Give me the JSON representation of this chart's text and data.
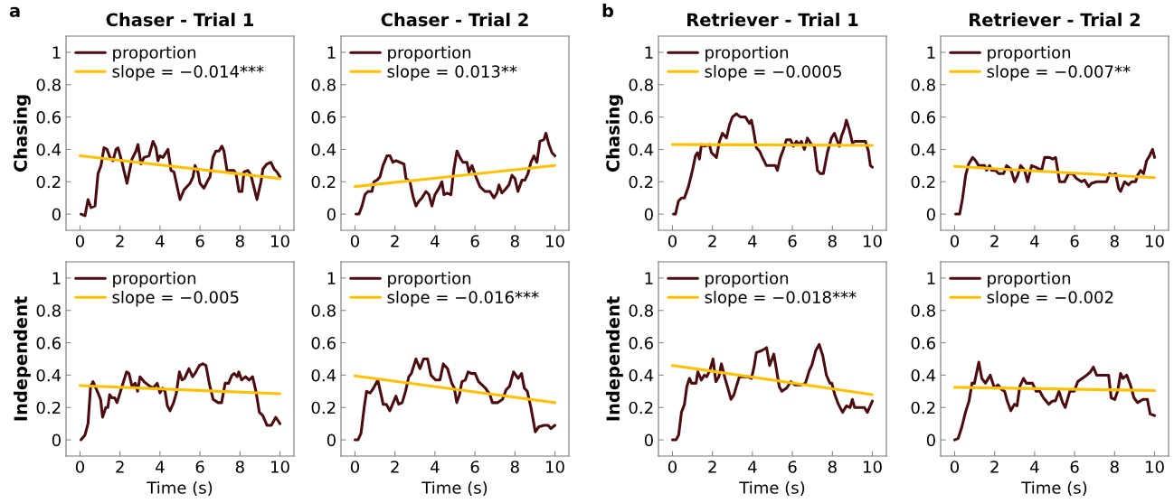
{
  "chart_data": [
    {
      "type": "line",
      "title": "Chaser - Trial 1",
      "ylabel": "Chasing",
      "annotations": [
        "a"
      ],
      "legend": "top left",
      "xlim": [
        -0.7,
        10.7
      ],
      "ylim": [
        -0.1,
        1.1
      ],
      "xticks": [
        0,
        2,
        4,
        6,
        8,
        10
      ],
      "yticks": [
        0,
        0.2,
        0.4,
        0.6,
        0.8,
        1
      ],
      "series": [
        {
          "name": "proportion",
          "color": "#4b0c10",
          "x": [
            0.05,
            0.25,
            0.4,
            0.55,
            0.75,
            0.9,
            1.05,
            1.2,
            1.35,
            1.5,
            1.65,
            1.8,
            1.9,
            2.1,
            2.35,
            2.6,
            2.8,
            2.9,
            3.05,
            3.2,
            3.45,
            3.65,
            3.8,
            3.9,
            4.0,
            4.15,
            4.4,
            4.55,
            4.7,
            5.0,
            5.2,
            5.5,
            5.65,
            5.75,
            5.9,
            6.0,
            6.2,
            6.4,
            6.5,
            6.65,
            6.8,
            6.95,
            7.1,
            7.2,
            7.35,
            7.7,
            7.8,
            7.95,
            8.1,
            8.2,
            8.4,
            8.55,
            8.85,
            9.05,
            9.15,
            9.35,
            9.55,
            9.7,
            9.85,
            10
          ],
          "values": [
            0,
            -0.01,
            0.09,
            0.04,
            0.05,
            0.25,
            0.3,
            0.41,
            0.4,
            0.35,
            0.33,
            0.4,
            0.41,
            0.32,
            0.19,
            0.34,
            0.39,
            0.43,
            0.31,
            0.35,
            0.36,
            0.45,
            0.41,
            0.33,
            0.36,
            0.35,
            0.4,
            0.27,
            0.26,
            0.09,
            0.15,
            0.19,
            0.23,
            0.3,
            0.26,
            0.19,
            0.16,
            0.21,
            0.23,
            0.35,
            0.39,
            0.39,
            0.42,
            0.39,
            0.27,
            0.27,
            0.25,
            0.14,
            0.14,
            0.26,
            0.27,
            0.24,
            0.09,
            0.2,
            0.28,
            0.31,
            0.32,
            0.28,
            0.26,
            0.23
          ]
        },
        {
          "name": "slope = −0.014***",
          "color": "#ffc000",
          "x": [
            0,
            10
          ],
          "values": [
            0.36,
            0.22
          ]
        }
      ]
    },
    {
      "type": "line",
      "title": "Chaser - Trial 2",
      "legend": "top left",
      "xlim": [
        -0.7,
        10.7
      ],
      "ylim": [
        -0.1,
        1.1
      ],
      "xticks": [
        0,
        2,
        4,
        6,
        8,
        10
      ],
      "yticks": [
        0,
        0.2,
        0.4,
        0.6,
        0.8,
        1
      ],
      "series": [
        {
          "name": "proportion",
          "color": "#4b0c10",
          "x": [
            0.05,
            0.2,
            0.35,
            0.5,
            0.65,
            0.85,
            0.95,
            1.1,
            1.25,
            1.4,
            1.6,
            1.75,
            1.9,
            2.05,
            2.25,
            2.45,
            2.55,
            2.75,
            2.9,
            3.05,
            3.2,
            3.35,
            3.55,
            3.7,
            3.85,
            4.0,
            4.2,
            4.35,
            4.45,
            4.6,
            4.8,
            4.95,
            5.1,
            5.25,
            5.4,
            5.6,
            5.7,
            5.85,
            6.05,
            6.25,
            6.5,
            6.75,
            6.95,
            7.1,
            7.2,
            7.35,
            7.5,
            7.7,
            7.85,
            8.0,
            8.15,
            8.35,
            8.5,
            8.65,
            8.8,
            8.95,
            9.1,
            9.25,
            9.45,
            9.55,
            9.7,
            9.85,
            10
          ],
          "values": [
            0,
            0,
            0.05,
            0.12,
            0.14,
            0.14,
            0.2,
            0.21,
            0.23,
            0.3,
            0.36,
            0.36,
            0.32,
            0.33,
            0.32,
            0.31,
            0.22,
            0.2,
            0.11,
            0.05,
            0.08,
            0.1,
            0.14,
            0.12,
            0.05,
            0.12,
            0.16,
            0.2,
            0.12,
            0.13,
            0.12,
            0.28,
            0.39,
            0.35,
            0.32,
            0.32,
            0.26,
            0.3,
            0.23,
            0.17,
            0.14,
            0.14,
            0.1,
            0.13,
            0.18,
            0.13,
            0.15,
            0.18,
            0.24,
            0.22,
            0.14,
            0.21,
            0.21,
            0.25,
            0.32,
            0.36,
            0.32,
            0.45,
            0.46,
            0.5,
            0.43,
            0.38,
            0.36
          ]
        },
        {
          "name": "slope = 0.013**",
          "color": "#ffc000",
          "x": [
            0,
            10
          ],
          "values": [
            0.17,
            0.3
          ]
        }
      ]
    },
    {
      "type": "line",
      "title": "Retriever - Trial 1",
      "ylabel": "Chasing",
      "annotations": [
        "b"
      ],
      "legend": "top left",
      "xlim": [
        -0.7,
        10.7
      ],
      "ylim": [
        -0.1,
        1.1
      ],
      "xticks": [
        0,
        2,
        4,
        6,
        8,
        10
      ],
      "yticks": [
        0,
        0.2,
        0.4,
        0.6,
        0.8,
        1
      ],
      "series": [
        {
          "name": "proportion",
          "color": "#4b0c10",
          "x": [
            0.05,
            0.15,
            0.3,
            0.45,
            0.6,
            0.8,
            1.0,
            1.15,
            1.25,
            1.35,
            1.45,
            1.6,
            1.85,
            1.95,
            2.2,
            2.35,
            2.5,
            2.7,
            2.85,
            3.0,
            3.2,
            3.4,
            3.65,
            3.85,
            3.95,
            4.05,
            4.2,
            4.35,
            4.5,
            4.7,
            5.0,
            5.15,
            5.25,
            5.4,
            5.55,
            5.7,
            5.9,
            6.05,
            6.2,
            6.35,
            6.45,
            6.6,
            6.75,
            6.95,
            7.1,
            7.25,
            7.4,
            7.55,
            7.75,
            7.95,
            8.1,
            8.25,
            8.35,
            8.45,
            8.6,
            8.7,
            8.85,
            9.0,
            9.15,
            9.4,
            9.65,
            9.8,
            9.9,
            10
          ],
          "values": [
            0,
            0,
            0.08,
            0.1,
            0.1,
            0.17,
            0.27,
            0.36,
            0.38,
            0.34,
            0.43,
            0.42,
            0.43,
            0.38,
            0.35,
            0.45,
            0.5,
            0.47,
            0.55,
            0.6,
            0.62,
            0.6,
            0.6,
            0.56,
            0.58,
            0.52,
            0.41,
            0.39,
            0.35,
            0.3,
            0.3,
            0.3,
            0.27,
            0.35,
            0.4,
            0.46,
            0.46,
            0.42,
            0.45,
            0.43,
            0.45,
            0.4,
            0.47,
            0.43,
            0.42,
            0.27,
            0.25,
            0.25,
            0.38,
            0.47,
            0.5,
            0.45,
            0.42,
            0.48,
            0.53,
            0.58,
            0.52,
            0.44,
            0.45,
            0.45,
            0.45,
            0.39,
            0.3,
            0.29
          ]
        },
        {
          "name": "slope = −0.0005",
          "color": "#ffc000",
          "x": [
            0,
            10
          ],
          "values": [
            0.43,
            0.425
          ]
        }
      ]
    },
    {
      "type": "line",
      "title": "Retriever - Trial 2",
      "legend": "top left",
      "xlim": [
        -0.7,
        10.7
      ],
      "ylim": [
        -0.1,
        1.1
      ],
      "xticks": [
        0,
        2,
        4,
        6,
        8,
        10
      ],
      "yticks": [
        0,
        0.2,
        0.4,
        0.6,
        0.8,
        1
      ],
      "series": [
        {
          "name": "proportion",
          "color": "#4b0c10",
          "x": [
            0.05,
            0.25,
            0.4,
            0.55,
            0.7,
            0.9,
            1.05,
            1.2,
            1.5,
            1.6,
            1.75,
            1.85,
            2.05,
            2.2,
            2.45,
            2.6,
            2.8,
            3.0,
            3.15,
            3.3,
            3.5,
            3.65,
            3.85,
            4.05,
            4.2,
            4.35,
            4.5,
            4.75,
            4.9,
            5.05,
            5.25,
            5.5,
            5.7,
            5.9,
            6.1,
            6.35,
            6.5,
            6.7,
            6.85,
            7.1,
            7.6,
            7.75,
            7.9,
            8.05,
            8.2,
            8.3,
            8.5,
            8.7,
            8.85,
            9.05,
            9.15,
            9.3,
            9.45,
            9.6,
            9.75,
            9.9,
            10
          ],
          "values": [
            0,
            0,
            0.1,
            0.24,
            0.31,
            0.35,
            0.33,
            0.3,
            0.3,
            0.27,
            0.3,
            0.27,
            0.27,
            0.25,
            0.25,
            0.3,
            0.28,
            0.2,
            0.24,
            0.3,
            0.27,
            0.2,
            0.3,
            0.29,
            0.28,
            0.27,
            0.35,
            0.35,
            0.34,
            0.35,
            0.2,
            0.2,
            0.25,
            0.25,
            0.22,
            0.2,
            0.21,
            0.17,
            0.19,
            0.2,
            0.2,
            0.25,
            0.24,
            0.25,
            0.16,
            0.14,
            0.2,
            0.18,
            0.2,
            0.2,
            0.24,
            0.27,
            0.25,
            0.33,
            0.36,
            0.4,
            0.35
          ]
        },
        {
          "name": "slope = −0.007**",
          "color": "#ffc000",
          "x": [
            0,
            10
          ],
          "values": [
            0.295,
            0.225
          ]
        }
      ]
    },
    {
      "type": "line",
      "xlabel": "Time (s)",
      "ylabel": "Independent",
      "legend": "top left",
      "xlim": [
        -0.7,
        10.7
      ],
      "ylim": [
        -0.1,
        1.1
      ],
      "xticks": [
        0,
        2,
        4,
        6,
        8,
        10
      ],
      "yticks": [
        0,
        0.2,
        0.4,
        0.6,
        0.8,
        1
      ],
      "series": [
        {
          "name": "proportion",
          "color": "#4b0c10",
          "x": [
            0.05,
            0.25,
            0.4,
            0.53,
            0.65,
            0.9,
            1.03,
            1.13,
            1.29,
            1.39,
            1.48,
            1.6,
            1.73,
            1.85,
            2.1,
            2.33,
            2.45,
            2.6,
            2.76,
            2.88,
            3.0,
            3.2,
            3.4,
            3.65,
            3.86,
            4.0,
            4.13,
            4.25,
            4.37,
            4.5,
            4.68,
            4.82,
            4.97,
            5.1,
            5.23,
            5.45,
            5.63,
            5.75,
            5.97,
            6.14,
            6.3,
            6.48,
            6.66,
            6.91,
            7.08,
            7.26,
            7.43,
            7.6,
            7.72,
            7.86,
            7.94,
            8.08,
            8.28,
            8.46,
            8.63,
            8.8,
            8.97,
            9.14,
            9.35,
            9.57,
            9.79,
            10
          ],
          "values": [
            0,
            0.03,
            0.1,
            0.33,
            0.36,
            0.29,
            0.25,
            0.14,
            0.2,
            0.2,
            0.28,
            0.26,
            0.26,
            0.23,
            0.33,
            0.42,
            0.41,
            0.33,
            0.35,
            0.3,
            0.39,
            0.36,
            0.34,
            0.32,
            0.35,
            0.29,
            0.32,
            0.3,
            0.21,
            0.18,
            0.23,
            0.29,
            0.42,
            0.37,
            0.38,
            0.44,
            0.39,
            0.41,
            0.46,
            0.47,
            0.46,
            0.34,
            0.25,
            0.23,
            0.23,
            0.35,
            0.35,
            0.4,
            0.41,
            0.39,
            0.42,
            0.37,
            0.39,
            0.37,
            0.39,
            0.3,
            0.17,
            0.15,
            0.09,
            0.09,
            0.14,
            0.1
          ]
        },
        {
          "name": "slope = −0.005",
          "color": "#ffc000",
          "x": [
            0,
            10
          ],
          "values": [
            0.335,
            0.285
          ]
        }
      ]
    },
    {
      "type": "line",
      "xlabel": "Time (s)",
      "legend": "top left",
      "xlim": [
        -0.7,
        10.7
      ],
      "ylim": [
        -0.1,
        1.1
      ],
      "xticks": [
        0,
        2,
        4,
        6,
        8,
        10
      ],
      "yticks": [
        0,
        0.2,
        0.4,
        0.6,
        0.8,
        1
      ],
      "series": [
        {
          "name": "proportion",
          "color": "#4b0c10",
          "x": [
            0,
            0.15,
            0.3,
            0.46,
            0.58,
            0.76,
            0.93,
            1.14,
            1.27,
            1.41,
            1.57,
            1.74,
            1.88,
            2.05,
            2.19,
            2.36,
            2.53,
            2.69,
            2.82,
            3.05,
            3.25,
            3.43,
            3.63,
            3.8,
            4.03,
            4.25,
            4.42,
            4.63,
            4.84,
            4.97,
            5.09,
            5.23,
            5.35,
            5.52,
            5.66,
            5.83,
            6.01,
            6.18,
            6.35,
            6.52,
            6.75,
            6.87,
            7.13,
            7.38,
            7.56,
            7.73,
            7.93,
            8.16,
            8.33,
            8.47,
            8.62,
            8.8,
            9.02,
            9.19,
            9.45,
            9.66,
            9.8,
            10
          ],
          "values": [
            0,
            0,
            0.04,
            0.2,
            0.3,
            0.29,
            0.32,
            0.37,
            0.3,
            0.22,
            0.22,
            0.18,
            0.22,
            0.27,
            0.22,
            0.23,
            0.3,
            0.39,
            0.41,
            0.5,
            0.44,
            0.5,
            0.5,
            0.4,
            0.37,
            0.37,
            0.47,
            0.44,
            0.35,
            0.32,
            0.23,
            0.28,
            0.36,
            0.37,
            0.42,
            0.41,
            0.41,
            0.36,
            0.34,
            0.32,
            0.28,
            0.23,
            0.23,
            0.25,
            0.31,
            0.33,
            0.42,
            0.38,
            0.41,
            0.32,
            0.3,
            0.2,
            0.05,
            0.08,
            0.09,
            0.09,
            0.07,
            0.09
          ]
        },
        {
          "name": "slope = −0.016***",
          "color": "#ffc000",
          "x": [
            0,
            10
          ],
          "values": [
            0.395,
            0.23
          ]
        }
      ]
    },
    {
      "type": "line",
      "xlabel": "Time (s)",
      "ylabel": "Independent",
      "legend": "top left",
      "xlim": [
        -0.7,
        10.7
      ],
      "ylim": [
        -0.1,
        1.1
      ],
      "xticks": [
        0,
        2,
        4,
        6,
        8,
        10
      ],
      "yticks": [
        0,
        0.2,
        0.4,
        0.6,
        0.8,
        1
      ],
      "series": [
        {
          "name": "proportion",
          "color": "#4b0c10",
          "x": [
            0,
            0.18,
            0.31,
            0.45,
            0.6,
            0.72,
            0.85,
            0.96,
            1.18,
            1.27,
            1.45,
            1.6,
            1.72,
            1.87,
            2.03,
            2.17,
            2.32,
            2.45,
            2.63,
            2.75,
            2.93,
            3.08,
            3.22,
            3.35,
            3.59,
            3.77,
            3.95,
            4.08,
            4.2,
            4.44,
            4.58,
            4.71,
            4.86,
            5.07,
            5.22,
            5.34,
            5.47,
            5.71,
            5.92,
            6.12,
            6.43,
            6.65,
            6.85,
            6.97,
            7.16,
            7.34,
            7.52,
            7.7,
            7.88,
            7.97,
            8.12,
            8.3,
            8.51,
            8.7,
            8.88,
            9.0,
            9.11,
            9.42,
            9.6,
            9.75,
            10
          ],
          "values": [
            0,
            0,
            0.03,
            0.17,
            0.22,
            0.33,
            0.38,
            0.35,
            0.35,
            0.42,
            0.37,
            0.4,
            0.39,
            0.43,
            0.5,
            0.36,
            0.39,
            0.47,
            0.38,
            0.33,
            0.25,
            0.28,
            0.34,
            0.39,
            0.39,
            0.39,
            0.38,
            0.45,
            0.54,
            0.55,
            0.56,
            0.57,
            0.46,
            0.53,
            0.42,
            0.33,
            0.3,
            0.32,
            0.36,
            0.34,
            0.34,
            0.35,
            0.43,
            0.46,
            0.55,
            0.59,
            0.52,
            0.4,
            0.35,
            0.35,
            0.28,
            0.22,
            0.17,
            0.21,
            0.2,
            0.25,
            0.2,
            0.2,
            0.2,
            0.17,
            0.24
          ]
        },
        {
          "name": "slope = −0.018***",
          "color": "#ffc000",
          "x": [
            0,
            10
          ],
          "values": [
            0.46,
            0.28
          ]
        }
      ]
    },
    {
      "type": "line",
      "xlabel": "Time (s)",
      "legend": "top left",
      "xlim": [
        -0.7,
        10.7
      ],
      "ylim": [
        -0.1,
        1.1
      ],
      "xticks": [
        0,
        2,
        4,
        6,
        8,
        10
      ],
      "yticks": [
        0,
        0.2,
        0.4,
        0.6,
        0.8,
        1
      ],
      "series": [
        {
          "name": "proportion",
          "color": "#4b0c10",
          "x": [
            0,
            0.18,
            0.36,
            0.54,
            0.72,
            0.87,
            0.99,
            1.09,
            1.21,
            1.36,
            1.54,
            1.78,
            1.99,
            2.17,
            2.36,
            2.5,
            2.63,
            2.81,
            2.99,
            3.12,
            3.26,
            3.44,
            3.59,
            3.89,
            4.08,
            4.26,
            4.44,
            4.71,
            4.89,
            5.04,
            5.22,
            5.4,
            5.53,
            5.76,
            5.98,
            6.16,
            6.38,
            6.61,
            6.79,
            6.94,
            7.1,
            7.39,
            7.7,
            7.83,
            8.01,
            8.15,
            8.3,
            8.42,
            8.61,
            8.79,
            8.97,
            9.15,
            9.42,
            9.64,
            9.78,
            10
          ],
          "values": [
            0,
            0.01,
            0.08,
            0.17,
            0.24,
            0.35,
            0.35,
            0.41,
            0.48,
            0.38,
            0.35,
            0.4,
            0.32,
            0.34,
            0.31,
            0.3,
            0.24,
            0.18,
            0.22,
            0.21,
            0.33,
            0.38,
            0.35,
            0.35,
            0.3,
            0.3,
            0.26,
            0.22,
            0.24,
            0.24,
            0.3,
            0.23,
            0.2,
            0.3,
            0.3,
            0.36,
            0.38,
            0.4,
            0.42,
            0.45,
            0.4,
            0.4,
            0.4,
            0.26,
            0.25,
            0.3,
            0.41,
            0.38,
            0.4,
            0.34,
            0.26,
            0.23,
            0.25,
            0.25,
            0.16,
            0.15
          ]
        },
        {
          "name": "slope = −0.002",
          "color": "#ffc000",
          "x": [
            0,
            10
          ],
          "values": [
            0.325,
            0.305
          ]
        }
      ]
    }
  ]
}
